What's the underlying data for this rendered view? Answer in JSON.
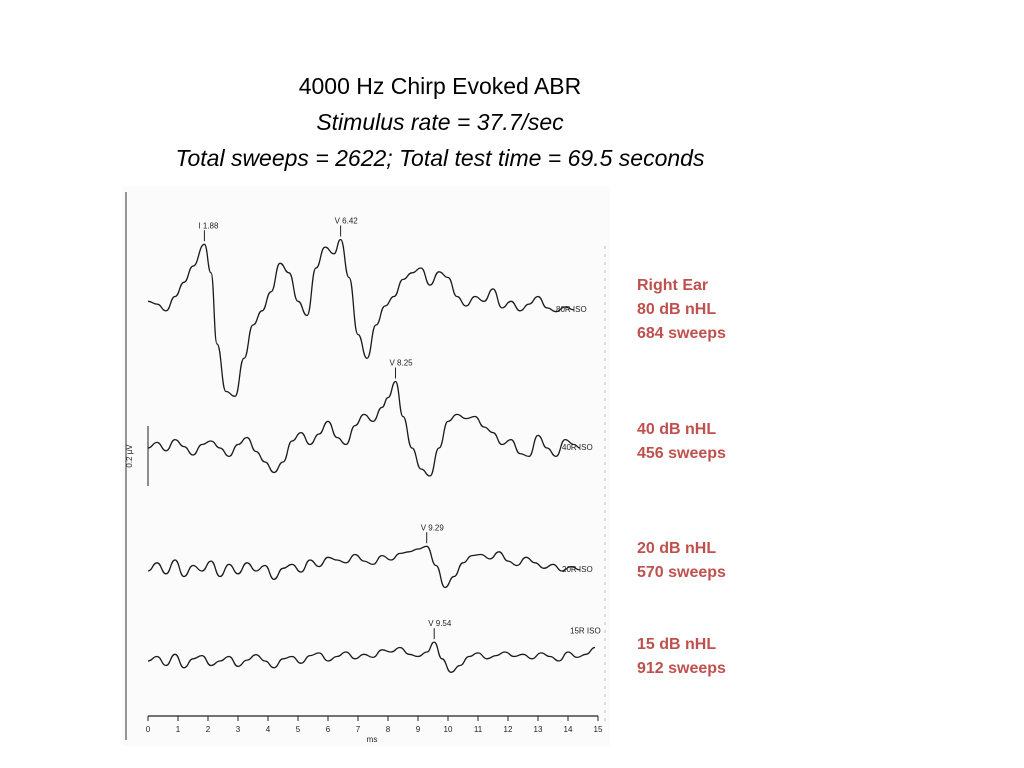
{
  "title": {
    "line1": "4000 Hz Chirp Evoked ABR",
    "line2": "Stimulus rate = 37.7/sec",
    "line3": "Total sweeps = 2622; Total test time = 69.5 seconds"
  },
  "annotations": [
    {
      "lines": [
        "Right Ear",
        "80 dB nHL",
        "684 sweeps"
      ]
    },
    {
      "lines": [
        "40 dB nHL",
        "456 sweeps"
      ]
    },
    {
      "lines": [
        "20 dB nHL",
        "570 sweeps"
      ]
    },
    {
      "lines": [
        "15 dB nHL",
        "912 sweeps"
      ]
    }
  ],
  "colors": {
    "annotation": "#c0504d",
    "trace": "#1a1a1a",
    "title": "#000000"
  },
  "chart_data": {
    "type": "line",
    "title": "",
    "xlabel": "ms",
    "ylabel": "",
    "scale_bar_label": "0.2 µV",
    "xlim": [
      0,
      15
    ],
    "xticks": [
      "0",
      "1",
      "2",
      "3",
      "4",
      "5",
      "6",
      "7",
      "8",
      "9",
      "10",
      "11",
      "12",
      "13",
      "14",
      "15"
    ],
    "grid": false,
    "legend": "none",
    "series": [
      {
        "name": "80R ISO",
        "peaks": [
          {
            "label": "I 1.88",
            "x": 1.88
          },
          {
            "label": "V 6.42",
            "x": 6.42
          }
        ],
        "x": [
          0,
          0.3,
          0.6,
          0.9,
          1.2,
          1.5,
          1.88,
          2.1,
          2.3,
          2.6,
          2.9,
          3.2,
          3.5,
          3.8,
          4.1,
          4.4,
          4.7,
          5.0,
          5.3,
          5.6,
          5.9,
          6.2,
          6.42,
          6.7,
          7.0,
          7.3,
          7.6,
          7.9,
          8.2,
          8.5,
          8.8,
          9.1,
          9.4,
          9.7,
          10.0,
          10.3,
          10.6,
          10.9,
          11.2,
          11.5,
          11.8,
          12.1,
          12.4,
          12.7,
          13.0,
          13.3,
          13.6,
          13.9,
          14.2
        ],
        "values": [
          0.05,
          0.02,
          -0.05,
          0.1,
          0.25,
          0.42,
          0.65,
          0.35,
          -0.4,
          -0.9,
          -0.95,
          -0.55,
          -0.2,
          -0.05,
          0.15,
          0.45,
          0.35,
          0.05,
          -0.1,
          0.4,
          0.62,
          0.55,
          0.7,
          0.3,
          -0.3,
          -0.55,
          -0.2,
          0.0,
          0.1,
          0.28,
          0.35,
          0.4,
          0.22,
          0.36,
          0.3,
          0.1,
          0.0,
          0.1,
          0.05,
          0.18,
          -0.02,
          0.05,
          -0.05,
          0.02,
          0.1,
          -0.02,
          -0.06,
          -0.01,
          -0.04
        ]
      },
      {
        "name": "40R ISO",
        "peaks": [
          {
            "label": "V 8.25",
            "x": 8.25
          }
        ],
        "x": [
          0,
          0.3,
          0.6,
          0.9,
          1.2,
          1.5,
          1.8,
          2.1,
          2.4,
          2.7,
          3.0,
          3.3,
          3.6,
          3.9,
          4.2,
          4.5,
          4.8,
          5.1,
          5.4,
          5.7,
          6.0,
          6.3,
          6.6,
          6.9,
          7.2,
          7.5,
          7.8,
          8.0,
          8.25,
          8.5,
          8.8,
          9.1,
          9.4,
          9.7,
          10.0,
          10.3,
          10.6,
          10.9,
          11.2,
          11.5,
          11.8,
          12.1,
          12.4,
          12.7,
          13.0,
          13.3,
          13.6,
          13.9,
          14.2,
          14.4
        ],
        "values": [
          0.0,
          0.08,
          -0.04,
          0.12,
          0.02,
          -0.1,
          0.05,
          0.1,
          0.0,
          -0.12,
          0.05,
          0.15,
          -0.05,
          -0.2,
          -0.35,
          -0.2,
          0.1,
          0.22,
          0.05,
          0.2,
          0.38,
          0.15,
          0.05,
          0.32,
          0.48,
          0.38,
          0.58,
          0.72,
          0.95,
          0.45,
          0.0,
          -0.3,
          -0.4,
          0.0,
          0.38,
          0.48,
          0.42,
          0.45,
          0.3,
          0.22,
          0.05,
          0.12,
          -0.08,
          -0.12,
          0.18,
          0.0,
          -0.12,
          0.12,
          0.05,
          0.0
        ]
      },
      {
        "name": "20R ISO",
        "peaks": [
          {
            "label": "V 9.29",
            "x": 9.29
          }
        ],
        "x": [
          0,
          0.3,
          0.6,
          0.9,
          1.2,
          1.5,
          1.8,
          2.1,
          2.4,
          2.7,
          3.0,
          3.3,
          3.6,
          3.9,
          4.2,
          4.5,
          4.8,
          5.1,
          5.4,
          5.7,
          6.0,
          6.3,
          6.6,
          6.9,
          7.2,
          7.5,
          7.8,
          8.1,
          8.4,
          8.7,
          9.0,
          9.29,
          9.6,
          9.9,
          10.2,
          10.5,
          10.8,
          11.1,
          11.4,
          11.7,
          12.0,
          12.3,
          12.6,
          12.9,
          13.2,
          13.5,
          13.8,
          14.1,
          14.4
        ],
        "values": [
          0.0,
          0.15,
          -0.05,
          0.2,
          -0.1,
          0.1,
          0.0,
          0.18,
          -0.1,
          0.12,
          -0.05,
          0.15,
          0.0,
          0.1,
          -0.15,
          0.05,
          0.12,
          -0.02,
          0.2,
          0.08,
          0.25,
          0.2,
          0.15,
          0.3,
          0.18,
          0.12,
          0.28,
          0.2,
          0.32,
          0.35,
          0.4,
          0.45,
          0.1,
          -0.3,
          -0.1,
          0.15,
          0.28,
          0.3,
          0.22,
          0.35,
          0.18,
          0.1,
          0.25,
          0.15,
          0.05,
          0.12,
          0.0,
          0.08,
          0.02
        ]
      },
      {
        "name": "15R ISO",
        "peaks": [
          {
            "label": "V 9.54",
            "x": 9.54
          }
        ],
        "x": [
          0,
          0.3,
          0.6,
          0.9,
          1.2,
          1.5,
          1.8,
          2.1,
          2.4,
          2.7,
          3.0,
          3.3,
          3.6,
          3.9,
          4.2,
          4.5,
          4.8,
          5.1,
          5.4,
          5.7,
          6.0,
          6.3,
          6.6,
          6.9,
          7.2,
          7.5,
          7.8,
          8.1,
          8.4,
          8.7,
          9.0,
          9.3,
          9.54,
          9.8,
          10.1,
          10.4,
          10.7,
          11.0,
          11.3,
          11.6,
          11.9,
          12.2,
          12.5,
          12.8,
          13.1,
          13.4,
          13.7,
          14.0,
          14.3,
          14.6,
          14.9
        ],
        "values": [
          0.0,
          0.1,
          -0.1,
          0.15,
          -0.15,
          0.05,
          0.12,
          -0.1,
          0.0,
          0.1,
          -0.12,
          0.02,
          0.14,
          0.0,
          -0.15,
          0.05,
          0.1,
          -0.05,
          0.12,
          0.18,
          0.0,
          0.1,
          0.2,
          0.05,
          0.15,
          0.08,
          0.25,
          0.2,
          0.3,
          0.15,
          0.1,
          0.2,
          0.42,
          0.05,
          -0.25,
          -0.1,
          0.1,
          0.18,
          0.05,
          0.12,
          0.2,
          0.1,
          0.15,
          0.05,
          0.18,
          0.1,
          0.0,
          0.2,
          0.08,
          0.15,
          0.3
        ]
      }
    ]
  }
}
